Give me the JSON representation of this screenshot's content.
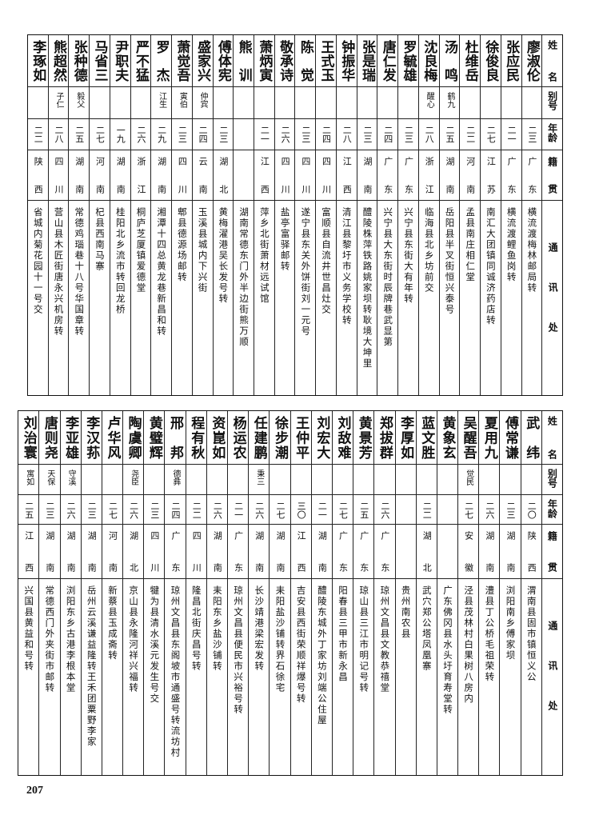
{
  "headers": {
    "name": "姓名",
    "alias": "别号",
    "age": "年龄",
    "origin": "籍贯",
    "address": "通讯处"
  },
  "tables": [
    {
      "rows": [
        {
          "name": "廖淑伦",
          "alias": "",
          "age": "二三",
          "origin": "广东",
          "address": "横流渡梅林邮局转"
        },
        {
          "name": "张应民",
          "alias": "",
          "age": "二一",
          "origin": "广东",
          "address": "横流渡鲤鱼岗转"
        },
        {
          "name": "徐俊良",
          "alias": "",
          "age": "二七",
          "origin": "江苏",
          "address": "南汇大团镇同诚济药店转"
        },
        {
          "name": "杜维岳",
          "alias": "",
          "age": "二二",
          "origin": "河南",
          "address": "孟县南庄相仁堂"
        },
        {
          "name": "汤鸣",
          "alias": "鹤九",
          "age": "二五",
          "origin": "湖南",
          "address": "岳阳县半叉街恒兴泰号"
        },
        {
          "name": "沈良梅",
          "alias": "醒心",
          "age": "二八",
          "origin": "浙江",
          "address": "临海县北乡坊前交"
        },
        {
          "name": "罗毓雄",
          "alias": "",
          "age": "二三",
          "origin": "广东",
          "address": "兴宁县东街大有年转"
        },
        {
          "name": "唐仁发",
          "alias": "",
          "age": "二四",
          "origin": "广东",
          "address": "兴宁县大东街时辰牌巷武显第"
        },
        {
          "name": "张是瑞",
          "alias": "",
          "age": "二三",
          "origin": "湖南",
          "address": "醴陵株萍铁路姚家坝转耿境大坤里"
        },
        {
          "name": "钟振华",
          "alias": "",
          "age": "二八",
          "origin": "江西",
          "address": "清江县黎圩市义务学校转"
        },
        {
          "name": "王式玉",
          "alias": "",
          "age": "二四",
          "origin": "四川",
          "address": "富顺县自流井世昌灶交"
        },
        {
          "name": "陈觉",
          "alias": "",
          "age": "二三",
          "origin": "四川",
          "address": "遂宁县东关外饼街刘一元号"
        },
        {
          "name": "敬承诗",
          "alias": "",
          "age": "二六",
          "origin": "四川",
          "address": "盐亭富驿邮转"
        },
        {
          "name": "萧炳寅",
          "alias": "",
          "age": "二一",
          "origin": "江西",
          "address": "萍乡北街萧材远试馆"
        },
        {
          "name": "熊训",
          "alias": "",
          "age": "",
          "origin": "",
          "address": "湖南常德东门外半边街熊万顺"
        },
        {
          "name": "傅体宪",
          "alias": "",
          "age": "二三",
          "origin": "湖北",
          "address": "黄梅濯港吴长发号转"
        },
        {
          "name": "盛家兴",
          "alias": "仲宾",
          "age": "二四",
          "origin": "云南",
          "address": "玉溪县城内下兴街"
        },
        {
          "name": "萧觉吾",
          "alias": "寅伯",
          "age": "二三",
          "origin": "四川",
          "address": "郫县德源场邮转"
        },
        {
          "name": "罗杰",
          "alias": "江生",
          "age": "二九",
          "origin": "湖南",
          "address": "湘潭十四总黄龙巷新昌和转"
        },
        {
          "name": "严不猛",
          "alias": "",
          "age": "二六",
          "origin": "浙江",
          "address": "桐庐芝厦镇爱德堂"
        },
        {
          "name": "尹职夫",
          "alias": "",
          "age": "一九",
          "origin": "湖南",
          "address": "桂阳北乡流市转回龙桥"
        },
        {
          "name": "马省三",
          "alias": "",
          "age": "二七",
          "origin": "河南",
          "address": "杞县西南马寨"
        },
        {
          "name": "张种德",
          "alias": "毅父",
          "age": "二五",
          "origin": "湖南",
          "address": "常德鸡瑙巷十八号华国章转"
        },
        {
          "name": "熊超然",
          "alias": "子仁",
          "age": "二八",
          "origin": "四川",
          "address": "营山县木匠街唐永兴机房转"
        },
        {
          "name": "李琢如",
          "alias": "",
          "age": "二二",
          "origin": "陕西",
          "address": "省城内菊花园十一号交"
        }
      ]
    },
    {
      "rows": [
        {
          "name": "武纬",
          "alias": "",
          "age": "二〇",
          "origin": "陕西",
          "address": "渭南县固市镇恒义公"
        },
        {
          "name": "傅常谦",
          "alias": "",
          "age": "二三",
          "origin": "湖南",
          "address": "浏阳南乡傅家坝"
        },
        {
          "name": "夏用九",
          "alias": "",
          "age": "二六",
          "origin": "湖南",
          "address": "澧县丁公桥毛祖荣转"
        },
        {
          "name": "吴醒吾",
          "alias": "觉民",
          "age": "二七",
          "origin": "安徽",
          "address": "泾县茂林村白果树八房内"
        },
        {
          "name": "黄象玄",
          "alias": "",
          "age": "",
          "origin": "",
          "address": "广东佛冈县水头圩育寿堂转"
        },
        {
          "name": "蓝文胜",
          "alias": "",
          "age": "二二",
          "origin": "湖北",
          "address": "武穴郑公塔凤凰寨"
        },
        {
          "name": "李厚如",
          "alias": "",
          "age": "",
          "origin": "",
          "address": "贵州南农县"
        },
        {
          "name": "郑拔群",
          "alias": "",
          "age": "二六",
          "origin": "广东",
          "address": "琼州文昌县文教恭禧堂"
        },
        {
          "name": "黄景芳",
          "alias": "",
          "age": "二五",
          "origin": "广东",
          "address": "琼山县三江市明记号转"
        },
        {
          "name": "刘敌难",
          "alias": "",
          "age": "二七",
          "origin": "广东",
          "address": "阳春县三甲市新永昌"
        },
        {
          "name": "刘宏大",
          "alias": "",
          "age": "二一",
          "origin": "湖南",
          "address": "醴陵东城外丁家坊刘端公住屋"
        },
        {
          "name": "王仲平",
          "alias": "",
          "age": "三〇",
          "origin": "江西",
          "address": "吉安县西街荣顺祥爆号转"
        },
        {
          "name": "徐步潮",
          "alias": "",
          "age": "二七",
          "origin": "湖南",
          "address": "耒阳盐沙铺转界石徐宅"
        },
        {
          "name": "任建鹏",
          "alias": "秉三",
          "age": "二六",
          "origin": "湖南",
          "address": "长沙靖港梁宏发转"
        },
        {
          "name": "杨运农",
          "alias": "",
          "age": "二一",
          "origin": "广东",
          "address": "琼州文昌县便民市兴裕号转"
        },
        {
          "name": "资崑如",
          "alias": "",
          "age": "二六",
          "origin": "湖南",
          "address": "耒阳东乡盐沙铺转"
        },
        {
          "name": "程有秋",
          "alias": "",
          "age": "二二",
          "origin": "四川",
          "address": "隆昌北街庆昌号转"
        },
        {
          "name": "邢邦",
          "alias": "德彝",
          "age": "二四",
          "origin": "广东",
          "address": "琼州文昌县东阁坡市通盛号转流坊村"
        },
        {
          "name": "黄璧辉",
          "alias": "",
          "age": "二三",
          "origin": "四川",
          "address": "犍为县清水溪元发生号交"
        },
        {
          "name": "陶虞卿",
          "alias": "尧臣",
          "age": "二六",
          "origin": "湖北",
          "address": "京山县永隆河祥兴福转"
        },
        {
          "name": "卢华风",
          "alias": "",
          "age": "二七",
          "origin": "河南",
          "address": "新蔡县玉成斋转"
        },
        {
          "name": "李汉荪",
          "alias": "",
          "age": "二三",
          "origin": "湖南",
          "address": "岳州云溪谦益隆转王禾团粟野李家"
        },
        {
          "name": "李亚雄",
          "alias": "守溪",
          "age": "二六",
          "origin": "湖南",
          "address": "浏阳东乡古港李根本堂"
        },
        {
          "name": "唐则尧",
          "alias": "天保",
          "age": "二三",
          "origin": "湖南",
          "address": "常德西门外夹街市邮转"
        },
        {
          "name": "刘治寰",
          "alias": "寓如",
          "age": "二五",
          "origin": "江西",
          "address": "兴国县黄益和号转"
        }
      ]
    }
  ],
  "page_number": "207"
}
